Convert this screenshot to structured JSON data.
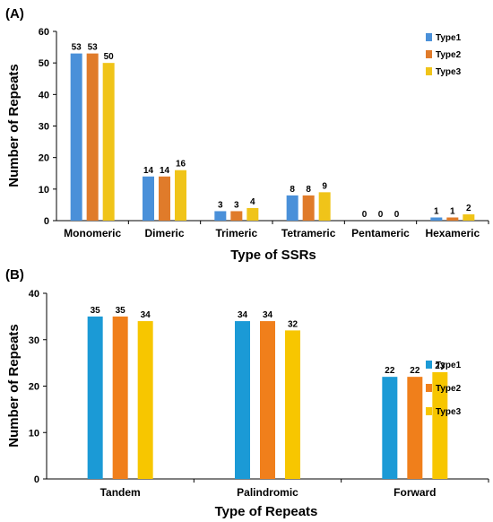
{
  "chart_data": [
    {
      "panel_label": "(A)",
      "type": "bar",
      "categories": [
        "Monomeric",
        "Dimeric",
        "Trimeric",
        "Tetrameric",
        "Pentameric",
        "Hexameric"
      ],
      "series": [
        {
          "name": "Type1",
          "color": "#4a90d9",
          "values": [
            53,
            14,
            3,
            8,
            0,
            1
          ]
        },
        {
          "name": "Type2",
          "color": "#e07b2a",
          "values": [
            53,
            14,
            3,
            8,
            0,
            1
          ]
        },
        {
          "name": "Type3",
          "color": "#f0c419",
          "values": [
            50,
            16,
            4,
            9,
            0,
            2
          ]
        }
      ],
      "xlabel": "Type of SSRs",
      "ylabel": "Number of Repeats",
      "ylim": [
        0,
        60
      ],
      "yticks": [
        0,
        10,
        20,
        30,
        40,
        50,
        60
      ],
      "data_labels": true,
      "legend": "top-right",
      "grid": false
    },
    {
      "panel_label": "(B)",
      "type": "bar",
      "categories": [
        "Tandem",
        "Palindromic",
        "Forward"
      ],
      "series": [
        {
          "name": "Type1",
          "color": "#1b9ad6",
          "values": [
            35,
            34,
            22
          ]
        },
        {
          "name": "Type2",
          "color": "#f07f1b",
          "values": [
            35,
            34,
            22
          ]
        },
        {
          "name": "Type3",
          "color": "#f7c600",
          "values": [
            34,
            32,
            23
          ]
        }
      ],
      "xlabel": "Type of Repeats",
      "ylabel": "Number of Repeats",
      "ylim": [
        0,
        40
      ],
      "yticks": [
        0,
        10,
        20,
        30,
        40
      ],
      "data_labels": true,
      "legend": "right",
      "grid": false
    }
  ]
}
